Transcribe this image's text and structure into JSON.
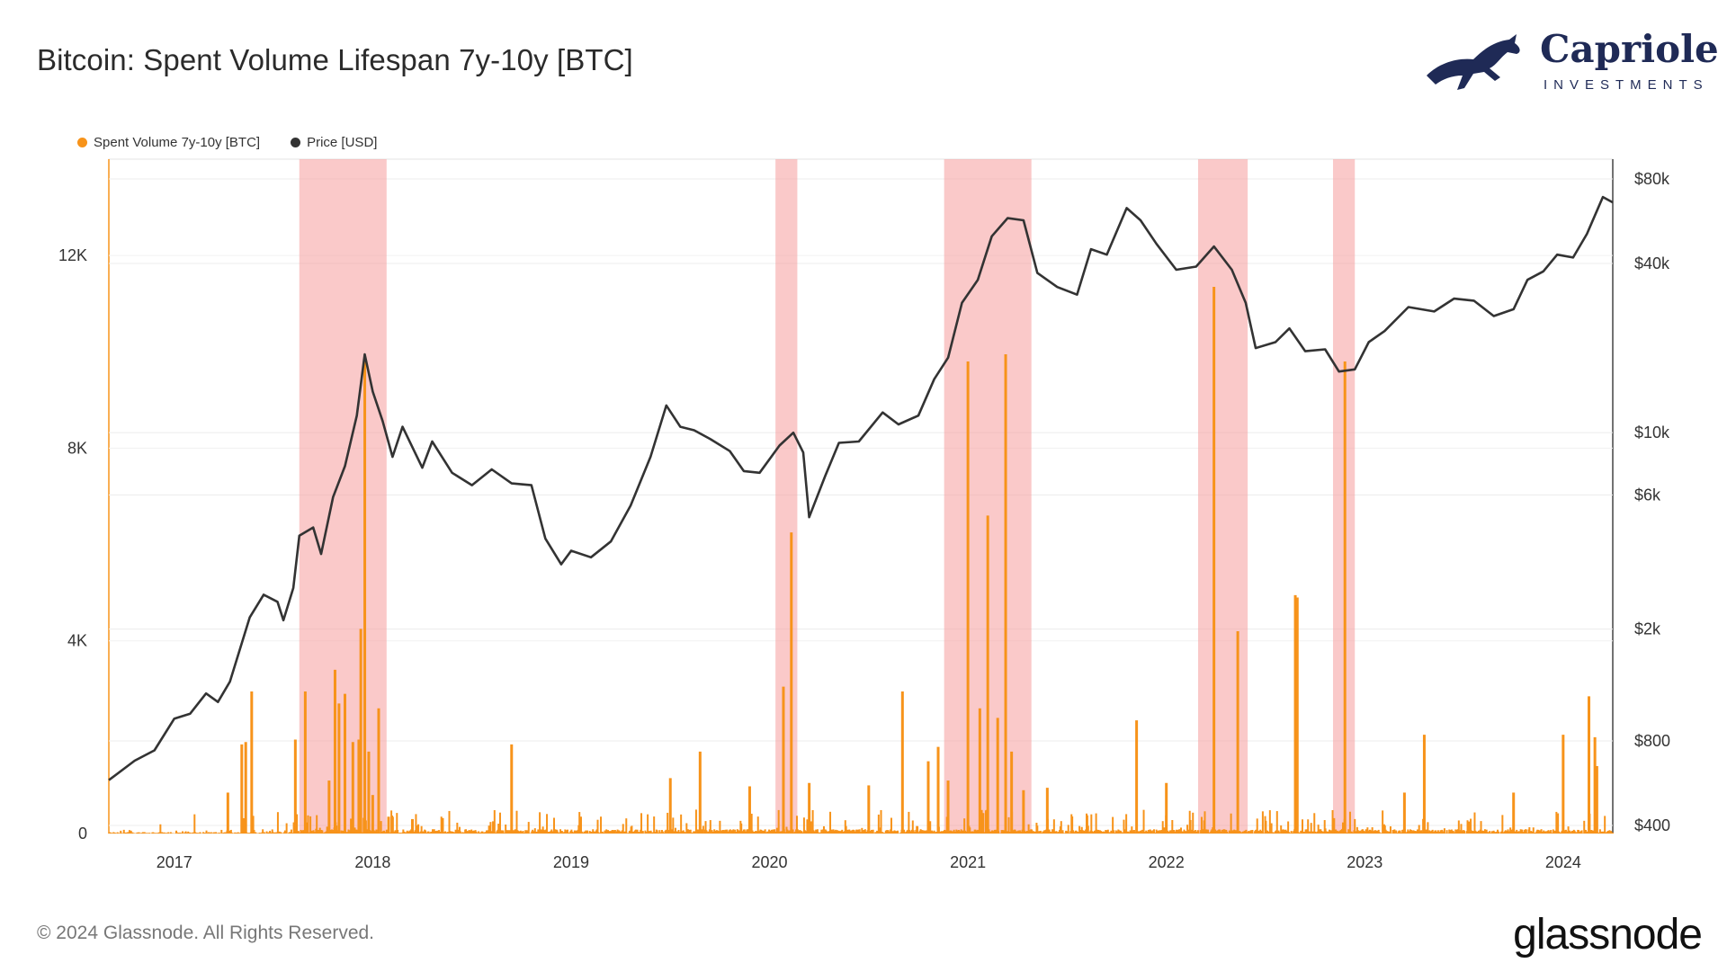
{
  "header": {
    "title": "Bitcoin: Spent Volume Lifespan 7y-10y [BTC]"
  },
  "logo": {
    "name": "Capriole",
    "sub": "INVESTMENTS"
  },
  "legend": [
    {
      "label": "Spent Volume 7y-10y [BTC]",
      "color": "#f7931a"
    },
    {
      "label": "Price [USD]",
      "color": "#333333"
    }
  ],
  "footer": {
    "copyright": "© 2024 Glassnode. All Rights Reserved.",
    "brand": "glassnode"
  },
  "chart_data": {
    "type": "bar",
    "x_ticks": [
      "2017",
      "2018",
      "2019",
      "2020",
      "2021",
      "2022",
      "2023",
      "2024"
    ],
    "x_range": [
      2016.67,
      2024.25
    ],
    "left_axis": {
      "ticks": [
        "0",
        "4K",
        "8K",
        "12K"
      ],
      "tick_values": [
        0,
        4000,
        8000,
        12000
      ],
      "ylim": [
        0,
        14000
      ]
    },
    "right_axis": {
      "scale": "log",
      "ticks": [
        "$400",
        "$800",
        "$2k",
        "$6k",
        "$10k",
        "$40k",
        "$80k"
      ],
      "tick_values": [
        400,
        800,
        2000,
        6000,
        10000,
        40000,
        80000
      ]
    },
    "highlight_color": "#f7a5a5",
    "highlights": [
      [
        2017.63,
        2018.07
      ],
      [
        2020.03,
        2020.14
      ],
      [
        2020.88,
        2021.32
      ],
      [
        2022.16,
        2022.41
      ],
      [
        2022.84,
        2022.95
      ]
    ],
    "series": [
      {
        "name": "Spent Volume 7y-10y [BTC]",
        "color": "#f7931a",
        "axis": "left",
        "spikes": [
          [
            2017.27,
            850
          ],
          [
            2017.34,
            1850
          ],
          [
            2017.36,
            1900
          ],
          [
            2017.39,
            2950
          ],
          [
            2017.61,
            1950
          ],
          [
            2017.66,
            2950
          ],
          [
            2017.78,
            1100
          ],
          [
            2017.81,
            3400
          ],
          [
            2017.83,
            2700
          ],
          [
            2017.86,
            2900
          ],
          [
            2017.9,
            1900
          ],
          [
            2017.93,
            1950
          ],
          [
            2017.94,
            4250
          ],
          [
            2017.96,
            9850
          ],
          [
            2017.98,
            1700
          ],
          [
            2018.0,
            800
          ],
          [
            2018.03,
            2600
          ],
          [
            2018.08,
            350
          ],
          [
            2018.2,
            300
          ],
          [
            2018.7,
            1850
          ],
          [
            2019.5,
            1150
          ],
          [
            2019.65,
            1700
          ],
          [
            2019.9,
            980
          ],
          [
            2020.07,
            3050
          ],
          [
            2020.11,
            6250
          ],
          [
            2020.2,
            1050
          ],
          [
            2020.5,
            1000
          ],
          [
            2020.67,
            2950
          ],
          [
            2020.8,
            1500
          ],
          [
            2020.85,
            1800
          ],
          [
            2020.9,
            1100
          ],
          [
            2021.0,
            9800
          ],
          [
            2021.06,
            2600
          ],
          [
            2021.1,
            6600
          ],
          [
            2021.15,
            2400
          ],
          [
            2021.19,
            9950
          ],
          [
            2021.22,
            1700
          ],
          [
            2021.28,
            900
          ],
          [
            2021.4,
            950
          ],
          [
            2021.85,
            2350
          ],
          [
            2022.0,
            1050
          ],
          [
            2022.24,
            11350
          ],
          [
            2022.36,
            4200
          ],
          [
            2022.65,
            4950
          ],
          [
            2022.66,
            4900
          ],
          [
            2022.9,
            9800
          ],
          [
            2023.2,
            850
          ],
          [
            2023.3,
            2050
          ],
          [
            2023.75,
            850
          ],
          [
            2024.0,
            2050
          ],
          [
            2024.13,
            2850
          ],
          [
            2024.16,
            2000
          ],
          [
            2024.17,
            1400
          ]
        ],
        "baseline_noise": "low values (0–600) throughout"
      },
      {
        "name": "Price [USD]",
        "color": "#333333",
        "axis": "right",
        "points": [
          [
            2016.67,
            580
          ],
          [
            2016.8,
            680
          ],
          [
            2016.9,
            740
          ],
          [
            2017.0,
            960
          ],
          [
            2017.08,
            1000
          ],
          [
            2017.16,
            1180
          ],
          [
            2017.22,
            1100
          ],
          [
            2017.28,
            1300
          ],
          [
            2017.38,
            2200
          ],
          [
            2017.45,
            2650
          ],
          [
            2017.52,
            2500
          ],
          [
            2017.55,
            2150
          ],
          [
            2017.6,
            2800
          ],
          [
            2017.63,
            4300
          ],
          [
            2017.7,
            4600
          ],
          [
            2017.74,
            3700
          ],
          [
            2017.8,
            5900
          ],
          [
            2017.86,
            7600
          ],
          [
            2017.92,
            11500
          ],
          [
            2017.96,
            19000
          ],
          [
            2018.0,
            14000
          ],
          [
            2018.05,
            11000
          ],
          [
            2018.1,
            8200
          ],
          [
            2018.15,
            10500
          ],
          [
            2018.25,
            7500
          ],
          [
            2018.3,
            9300
          ],
          [
            2018.4,
            7200
          ],
          [
            2018.5,
            6500
          ],
          [
            2018.6,
            7400
          ],
          [
            2018.7,
            6600
          ],
          [
            2018.8,
            6500
          ],
          [
            2018.87,
            4200
          ],
          [
            2018.95,
            3400
          ],
          [
            2019.0,
            3800
          ],
          [
            2019.1,
            3600
          ],
          [
            2019.2,
            4100
          ],
          [
            2019.3,
            5500
          ],
          [
            2019.4,
            8200
          ],
          [
            2019.48,
            12500
          ],
          [
            2019.55,
            10500
          ],
          [
            2019.62,
            10200
          ],
          [
            2019.7,
            9500
          ],
          [
            2019.8,
            8600
          ],
          [
            2019.87,
            7300
          ],
          [
            2019.95,
            7200
          ],
          [
            2020.05,
            9000
          ],
          [
            2020.12,
            10000
          ],
          [
            2020.17,
            8500
          ],
          [
            2020.2,
            5000
          ],
          [
            2020.28,
            7000
          ],
          [
            2020.35,
            9200
          ],
          [
            2020.45,
            9300
          ],
          [
            2020.57,
            11800
          ],
          [
            2020.65,
            10700
          ],
          [
            2020.75,
            11500
          ],
          [
            2020.83,
            15500
          ],
          [
            2020.9,
            18500
          ],
          [
            2020.97,
            29000
          ],
          [
            2021.05,
            35000
          ],
          [
            2021.12,
            50000
          ],
          [
            2021.2,
            58000
          ],
          [
            2021.28,
            57000
          ],
          [
            2021.35,
            37000
          ],
          [
            2021.45,
            33000
          ],
          [
            2021.55,
            31000
          ],
          [
            2021.62,
            45000
          ],
          [
            2021.7,
            43000
          ],
          [
            2021.8,
            63000
          ],
          [
            2021.87,
            57000
          ],
          [
            2021.95,
            47000
          ],
          [
            2022.05,
            38000
          ],
          [
            2022.15,
            39000
          ],
          [
            2022.24,
            46000
          ],
          [
            2022.33,
            38000
          ],
          [
            2022.4,
            29000
          ],
          [
            2022.45,
            20000
          ],
          [
            2022.55,
            21000
          ],
          [
            2022.62,
            23500
          ],
          [
            2022.7,
            19500
          ],
          [
            2022.8,
            19800
          ],
          [
            2022.87,
            16500
          ],
          [
            2022.95,
            16800
          ],
          [
            2023.02,
            21000
          ],
          [
            2023.1,
            23000
          ],
          [
            2023.22,
            28000
          ],
          [
            2023.35,
            27000
          ],
          [
            2023.45,
            30000
          ],
          [
            2023.55,
            29500
          ],
          [
            2023.65,
            26000
          ],
          [
            2023.75,
            27500
          ],
          [
            2023.82,
            35000
          ],
          [
            2023.9,
            37500
          ],
          [
            2023.97,
            43000
          ],
          [
            2024.05,
            42000
          ],
          [
            2024.12,
            51000
          ],
          [
            2024.2,
            69000
          ],
          [
            2024.25,
            66000
          ]
        ]
      }
    ]
  }
}
